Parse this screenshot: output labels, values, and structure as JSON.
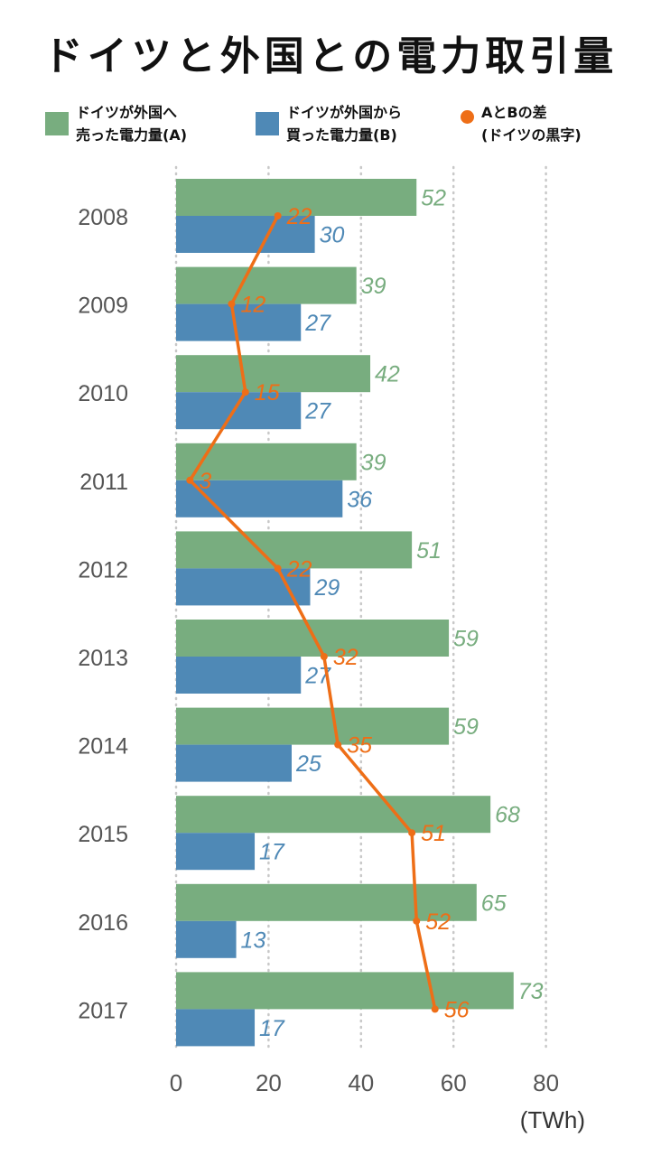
{
  "title": "ドイツと外国との電力取引量",
  "legend": {
    "sold": {
      "line1": "ドイツが外国へ",
      "line2": "売った電力量(A)"
    },
    "bought": {
      "line1": "ドイツが外国から",
      "line2": "買った電力量(B)"
    },
    "diff": {
      "line1": "AとBの差",
      "line2": "(ドイツの黒字)"
    }
  },
  "colors": {
    "sold": "#78ad7f",
    "bought": "#4f89b6",
    "diff": "#ee6e17",
    "grid": "#c8c8c8"
  },
  "chart_data": {
    "type": "bar",
    "orientation": "horizontal",
    "title": "ドイツと外国との電力取引量",
    "categories": [
      "2008",
      "2009",
      "2010",
      "2011",
      "2012",
      "2013",
      "2014",
      "2015",
      "2016",
      "2017"
    ],
    "series": [
      {
        "name": "ドイツが外国へ売った電力量(A)",
        "type": "bar",
        "values": [
          52,
          39,
          42,
          39,
          51,
          59,
          59,
          68,
          65,
          73
        ]
      },
      {
        "name": "ドイツが外国から買った電力量(B)",
        "type": "bar",
        "values": [
          30,
          27,
          27,
          36,
          29,
          27,
          25,
          17,
          13,
          17
        ]
      },
      {
        "name": "AとBの差(ドイツの黒字)",
        "type": "line",
        "values": [
          22,
          12,
          15,
          3,
          22,
          32,
          35,
          51,
          52,
          56
        ]
      }
    ],
    "xlim": [
      0,
      80
    ],
    "xticks": [
      "0",
      "20",
      "40",
      "60",
      "80"
    ],
    "unit": "(TWh)",
    "grid": true
  }
}
